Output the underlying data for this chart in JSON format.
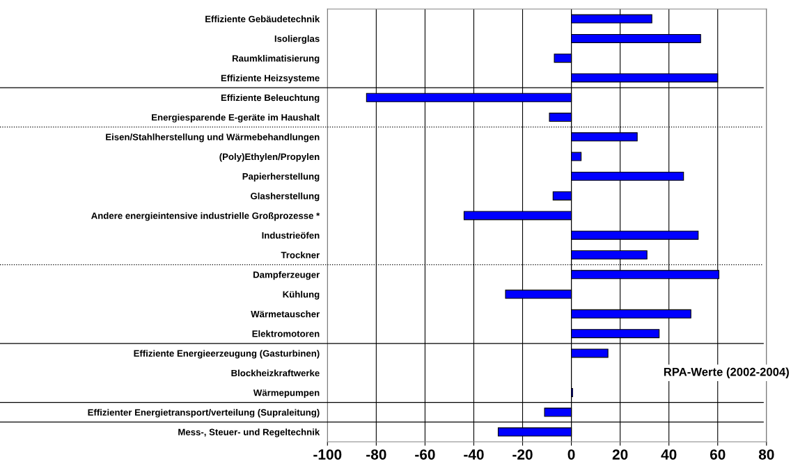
{
  "chart_data": {
    "type": "bar",
    "orientation": "horizontal",
    "categories": [
      "Effiziente Gebäudetechnik",
      "Isolierglas",
      "Raumklimatisierung",
      "Effiziente Heizsysteme",
      "Effiziente Beleuchtung",
      "Energiesparende E-geräte im Haushalt",
      "Eisen/Stahlherstellung und Wärmebehandlungen",
      "(Poly)Ethylen/Propylen",
      "Papierherstellung",
      "Glasherstellung",
      "Andere energieintensive industrielle Großprozesse *",
      "Industrieöfen",
      "Trockner",
      "Dampferzeuger",
      "Kühlung",
      "Wärmetauscher",
      "Elektromotoren",
      "Effiziente Energieerzeugung (Gasturbinen)",
      "Blockheizkraftwerke",
      "Wärmepumpen",
      "Effizienter Energietransport/verteilung (Supraleitung)",
      "Mess-, Steuer- und Regeltechnik"
    ],
    "values": [
      33,
      53,
      -7,
      60,
      -84,
      -9,
      27,
      4,
      46,
      -7.5,
      -44,
      52,
      31,
      60.5,
      -27,
      49,
      36,
      15,
      null,
      0.5,
      -11,
      -30
    ],
    "color": "#0000ff",
    "xlim": [
      -100,
      80
    ],
    "xticks": [
      -100,
      -80,
      -60,
      -40,
      -20,
      0,
      20,
      40,
      60,
      80
    ],
    "grid": "x",
    "legend": false,
    "annotations": [
      "RPA-Werte (2002-2004)"
    ]
  }
}
